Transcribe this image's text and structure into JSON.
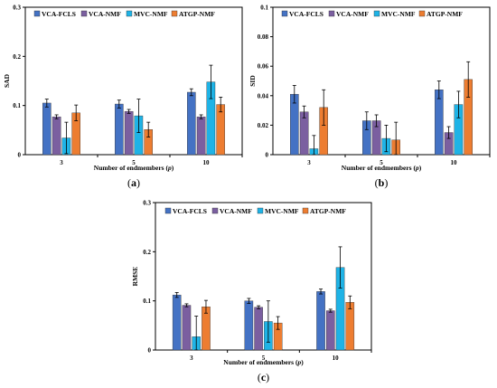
{
  "chart_data": [
    {
      "panel_label": "(a)",
      "type": "bar",
      "ylabel": "SAD",
      "xlabel": "Number of endmembers (",
      "xlabel_var": "p",
      "xlabel_close": ")",
      "categories": [
        "3",
        "5",
        "10"
      ],
      "ylim": [
        0,
        0.3
      ],
      "yticks": [
        "0",
        "0.1",
        "0.2",
        "0.3"
      ],
      "legend_position": "top",
      "series": [
        {
          "name": "VCA-FCLS",
          "color": "#4472c4",
          "values": [
            0.105,
            0.103,
            0.127
          ],
          "errors": [
            0.008,
            0.008,
            0.007
          ]
        },
        {
          "name": "VCA-NMF",
          "color": "#7b5fa0",
          "values": [
            0.077,
            0.088,
            0.077
          ],
          "errors": [
            0.004,
            0.004,
            0.004
          ]
        },
        {
          "name": "MVC-NMF",
          "color": "#1fb3e6",
          "values": [
            0.034,
            0.079,
            0.148
          ],
          "errors": [
            0.032,
            0.034,
            0.034
          ]
        },
        {
          "name": "ATGP-NMF",
          "color": "#ed7d31",
          "values": [
            0.085,
            0.051,
            0.102
          ],
          "errors": [
            0.016,
            0.015,
            0.015
          ]
        }
      ]
    },
    {
      "panel_label": "(b)",
      "type": "bar",
      "ylabel": "SID",
      "xlabel": "Number of endmembers (",
      "xlabel_var": "p",
      "xlabel_close": ")",
      "categories": [
        "3",
        "5",
        "10"
      ],
      "ylim": [
        0,
        0.1
      ],
      "yticks": [
        "0",
        "0.02",
        "0.04",
        "0.06",
        "0.08",
        "0.1"
      ],
      "legend_position": "top",
      "series": [
        {
          "name": "VCA-FCLS",
          "color": "#4472c4",
          "values": [
            0.041,
            0.023,
            0.044
          ],
          "errors": [
            0.006,
            0.006,
            0.006
          ]
        },
        {
          "name": "VCA-NMF",
          "color": "#7b5fa0",
          "values": [
            0.029,
            0.023,
            0.015
          ],
          "errors": [
            0.004,
            0.004,
            0.004
          ]
        },
        {
          "name": "MVC-NMF",
          "color": "#1fb3e6",
          "values": [
            0.004,
            0.011,
            0.034
          ],
          "errors": [
            0.009,
            0.009,
            0.009
          ]
        },
        {
          "name": "ATGP-NMF",
          "color": "#ed7d31",
          "values": [
            0.032,
            0.01,
            0.051
          ],
          "errors": [
            0.012,
            0.012,
            0.012
          ]
        }
      ]
    },
    {
      "panel_label": "(c)",
      "type": "bar",
      "ylabel": "RMSE",
      "xlabel": "Number of endmembers (",
      "xlabel_var": "p",
      "xlabel_close": ")",
      "categories": [
        "3",
        "5",
        "10"
      ],
      "ylim": [
        0,
        0.3
      ],
      "yticks": [
        "0",
        "0.1",
        "0.2",
        "0.3"
      ],
      "legend_position": "top",
      "series": [
        {
          "name": "VCA-FCLS",
          "color": "#4472c4",
          "values": [
            0.112,
            0.1,
            0.119
          ],
          "errors": [
            0.005,
            0.005,
            0.005
          ]
        },
        {
          "name": "VCA-NMF",
          "color": "#7b5fa0",
          "values": [
            0.091,
            0.087,
            0.08
          ],
          "errors": [
            0.003,
            0.003,
            0.003
          ]
        },
        {
          "name": "MVC-NMF",
          "color": "#1fb3e6",
          "values": [
            0.027,
            0.058,
            0.168
          ],
          "errors": [
            0.042,
            0.042,
            0.042
          ]
        },
        {
          "name": "ATGP-NMF",
          "color": "#ed7d31",
          "values": [
            0.088,
            0.055,
            0.097
          ],
          "errors": [
            0.013,
            0.013,
            0.013
          ]
        }
      ]
    }
  ]
}
